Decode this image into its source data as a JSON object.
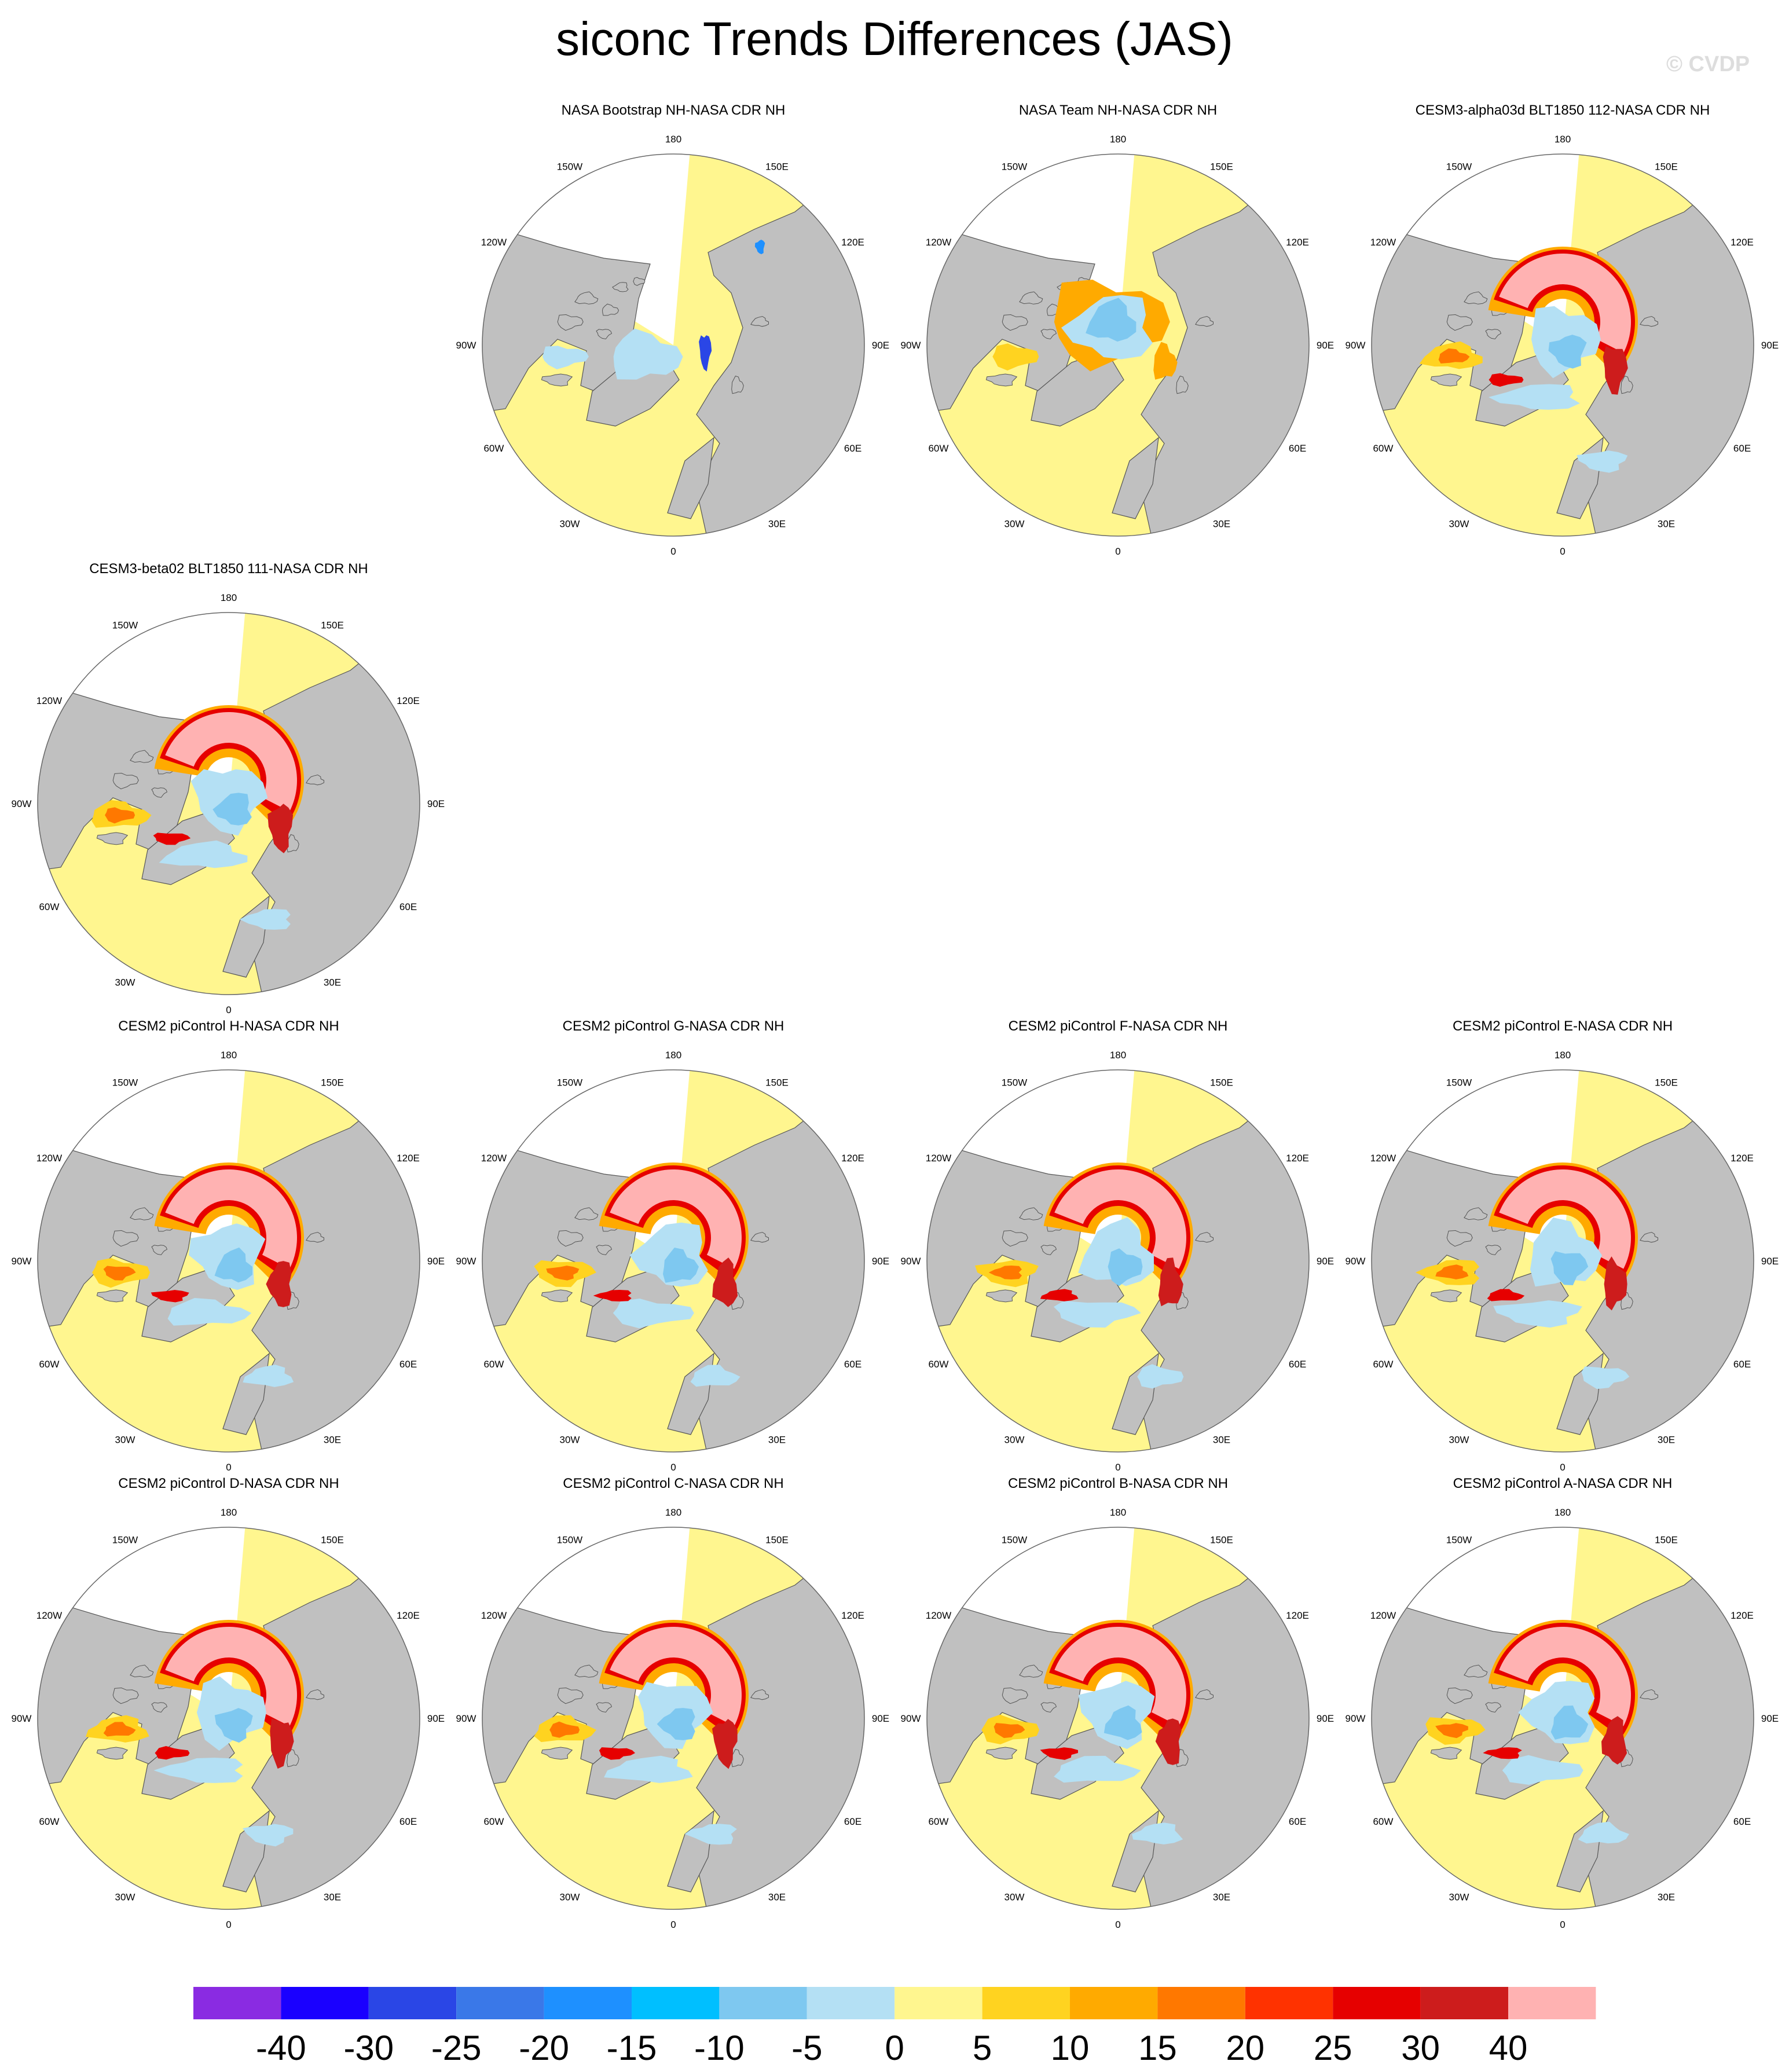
{
  "title": "siconc Trends Differences (JAS)",
  "watermark": "© CVDP",
  "map": {
    "projection": "north-polar-stereographic",
    "lon_labels": [
      "180",
      "150E",
      "120E",
      "90E",
      "60E",
      "30E",
      "0",
      "30W",
      "60W",
      "90W",
      "120W",
      "150W"
    ],
    "colors": {
      "land": "#c0c0c0",
      "missing": "#ffffff",
      "coastline": "#555555"
    }
  },
  "panels": [
    {
      "title": "NASA Bootstrap NH-NASA CDR NH",
      "pattern": "bootstrap"
    },
    {
      "title": "NASA Team NH-NASA CDR NH",
      "pattern": "team"
    },
    {
      "title": "CESM3-alpha03d BLT1850 112-NASA CDR NH",
      "pattern": "model"
    },
    {
      "title": "CESM3-beta02 BLT1850 111-NASA CDR NH",
      "pattern": "model"
    },
    {
      "title": "CESM2 piControl H-NASA CDR NH",
      "pattern": "model"
    },
    {
      "title": "CESM2 piControl G-NASA CDR NH",
      "pattern": "model"
    },
    {
      "title": "CESM2 piControl F-NASA CDR NH",
      "pattern": "model"
    },
    {
      "title": "CESM2 piControl E-NASA CDR NH",
      "pattern": "model"
    },
    {
      "title": "CESM2 piControl D-NASA CDR NH",
      "pattern": "model"
    },
    {
      "title": "CESM2 piControl C-NASA CDR NH",
      "pattern": "model"
    },
    {
      "title": "CESM2 piControl B-NASA CDR NH",
      "pattern": "model"
    },
    {
      "title": "CESM2 piControl A-NASA CDR NH",
      "pattern": "model"
    }
  ],
  "colorbar": {
    "labels": [
      "-40",
      "-30",
      "-25",
      "-20",
      "-15",
      "-10",
      "-5",
      "0",
      "5",
      "10",
      "15",
      "20",
      "25",
      "30",
      "40"
    ],
    "colors": [
      "#8a2be2",
      "#1a00ff",
      "#2a46e6",
      "#3a78e8",
      "#1e90ff",
      "#00bfff",
      "#7ec8f0",
      "#b4e0f4",
      "#fff68f",
      "#ffd320",
      "#ffaa00",
      "#ff7800",
      "#ff3200",
      "#e60000",
      "#cd1c1c",
      "#ffb2b2"
    ]
  }
}
